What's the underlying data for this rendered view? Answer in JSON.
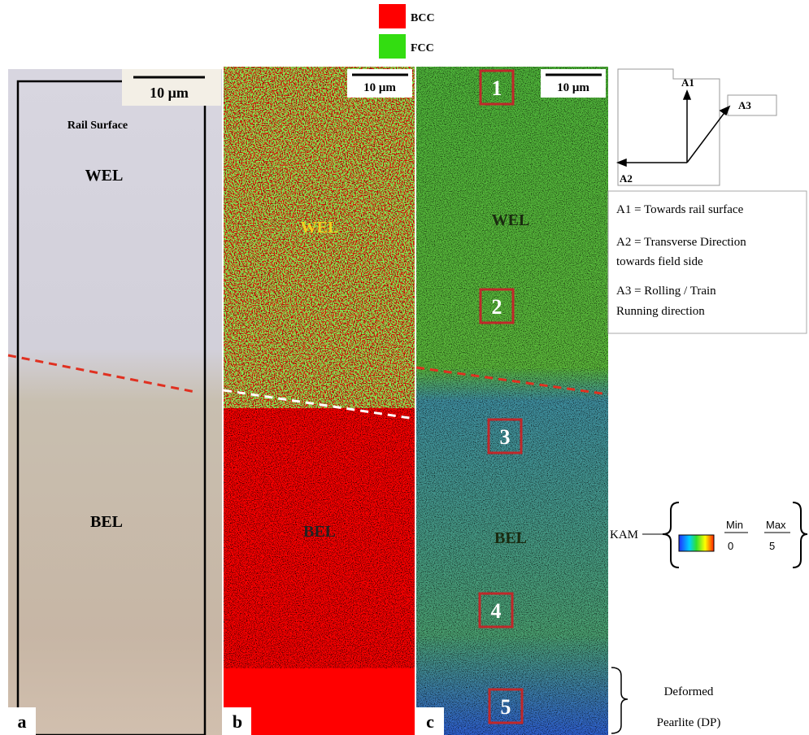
{
  "legend": {
    "items": [
      {
        "label": "BCC",
        "color": "#ff0000"
      },
      {
        "label": "FCC",
        "color": "#33dd11"
      }
    ]
  },
  "panels": [
    {
      "label": "a",
      "scale_bar": "10 μm",
      "annotations": [
        "Rail Surface",
        "WEL",
        "BEL"
      ]
    },
    {
      "label": "b",
      "scale_bar": "10 μm",
      "annotations": [
        "WEL",
        "BEL"
      ]
    },
    {
      "label": "c",
      "scale_bar": "10 μm",
      "annotations": [
        "WEL",
        "BEL"
      ],
      "regions": [
        "1",
        "2",
        "3",
        "4",
        "5"
      ]
    }
  ],
  "axes_diagram": {
    "axes": [
      "A1",
      "A2",
      "A3"
    ],
    "descriptions": [
      [
        "A1 = Towards rail surface"
      ],
      [
        "A2 = Transverse Direction",
        "towards field side"
      ],
      [
        "A3 = Rolling / Train",
        "Running direction"
      ]
    ]
  },
  "kam_legend": {
    "label": "KAM",
    "min_label": "Min",
    "max_label": "Max",
    "min": 0,
    "max": 5
  },
  "deformed_pearlite": [
    "Deformed",
    "Pearlite (DP)"
  ]
}
